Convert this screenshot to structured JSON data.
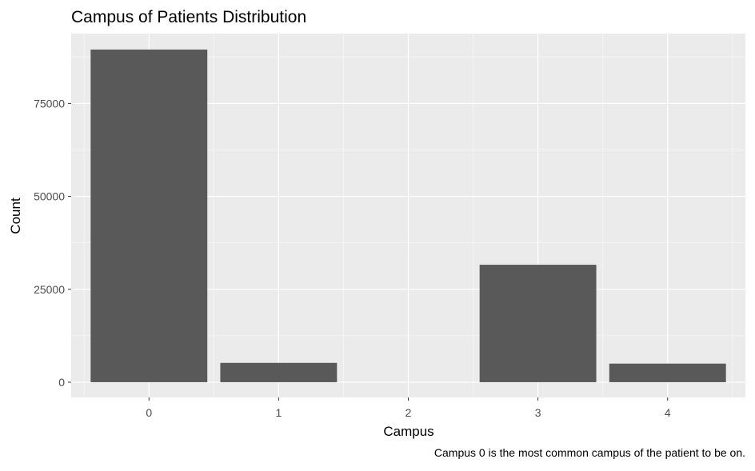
{
  "chart_data": {
    "type": "bar",
    "title": "Campus of Patients Distribution",
    "xlabel": "Campus",
    "ylabel": "Count",
    "caption": "Campus 0 is the most common campus of the patient to be on.",
    "categories": [
      "0",
      "1",
      "2",
      "3",
      "4"
    ],
    "values": [
      89500,
      5200,
      0,
      31600,
      5000
    ],
    "ylim": [
      -4100,
      93800
    ],
    "yticks": [
      0,
      25000,
      50000,
      75000
    ],
    "ytick_labels": [
      "0",
      "25000",
      "50000",
      "75000"
    ],
    "grid": true,
    "colors": {
      "bar": "#595959",
      "panel": "#ebebeb",
      "grid_major": "#ffffff",
      "grid_minor": "#f5f5f5",
      "tick_label": "#4d4d4d",
      "text": "#000000"
    }
  }
}
